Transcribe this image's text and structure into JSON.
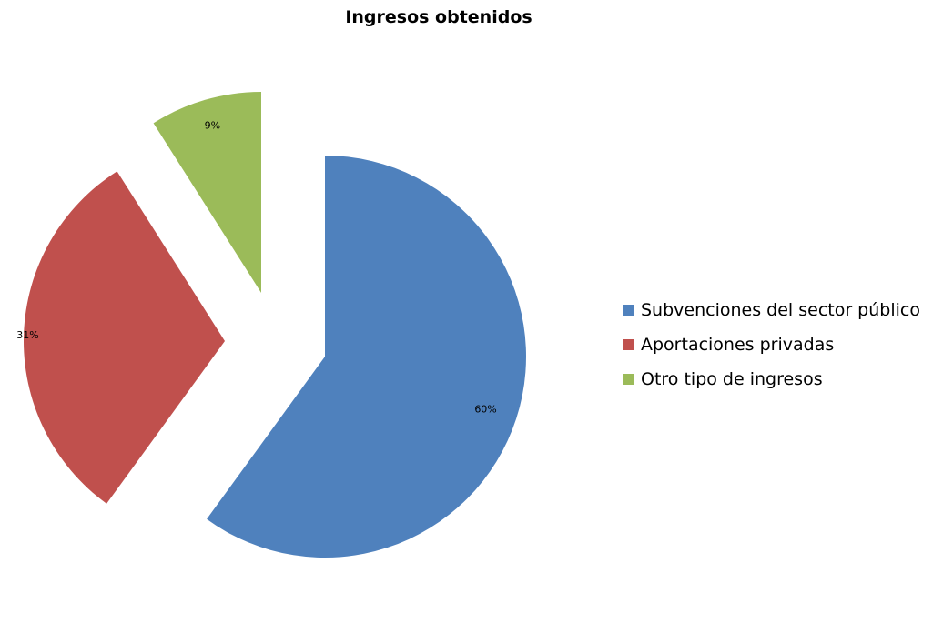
{
  "chart_data": {
    "type": "pie",
    "title": "Ingresos obtenidos",
    "categories": [
      "Subvenciones del sector público",
      "Aportaciones privadas",
      "Otro tipo de ingresos"
    ],
    "values": [
      60,
      31,
      9
    ],
    "data_labels": [
      "60%",
      "31%",
      "9%"
    ],
    "colors": [
      "#4F81BD",
      "#C0504D",
      "#9BBB59"
    ],
    "exploded": true,
    "legend_position": "right"
  }
}
